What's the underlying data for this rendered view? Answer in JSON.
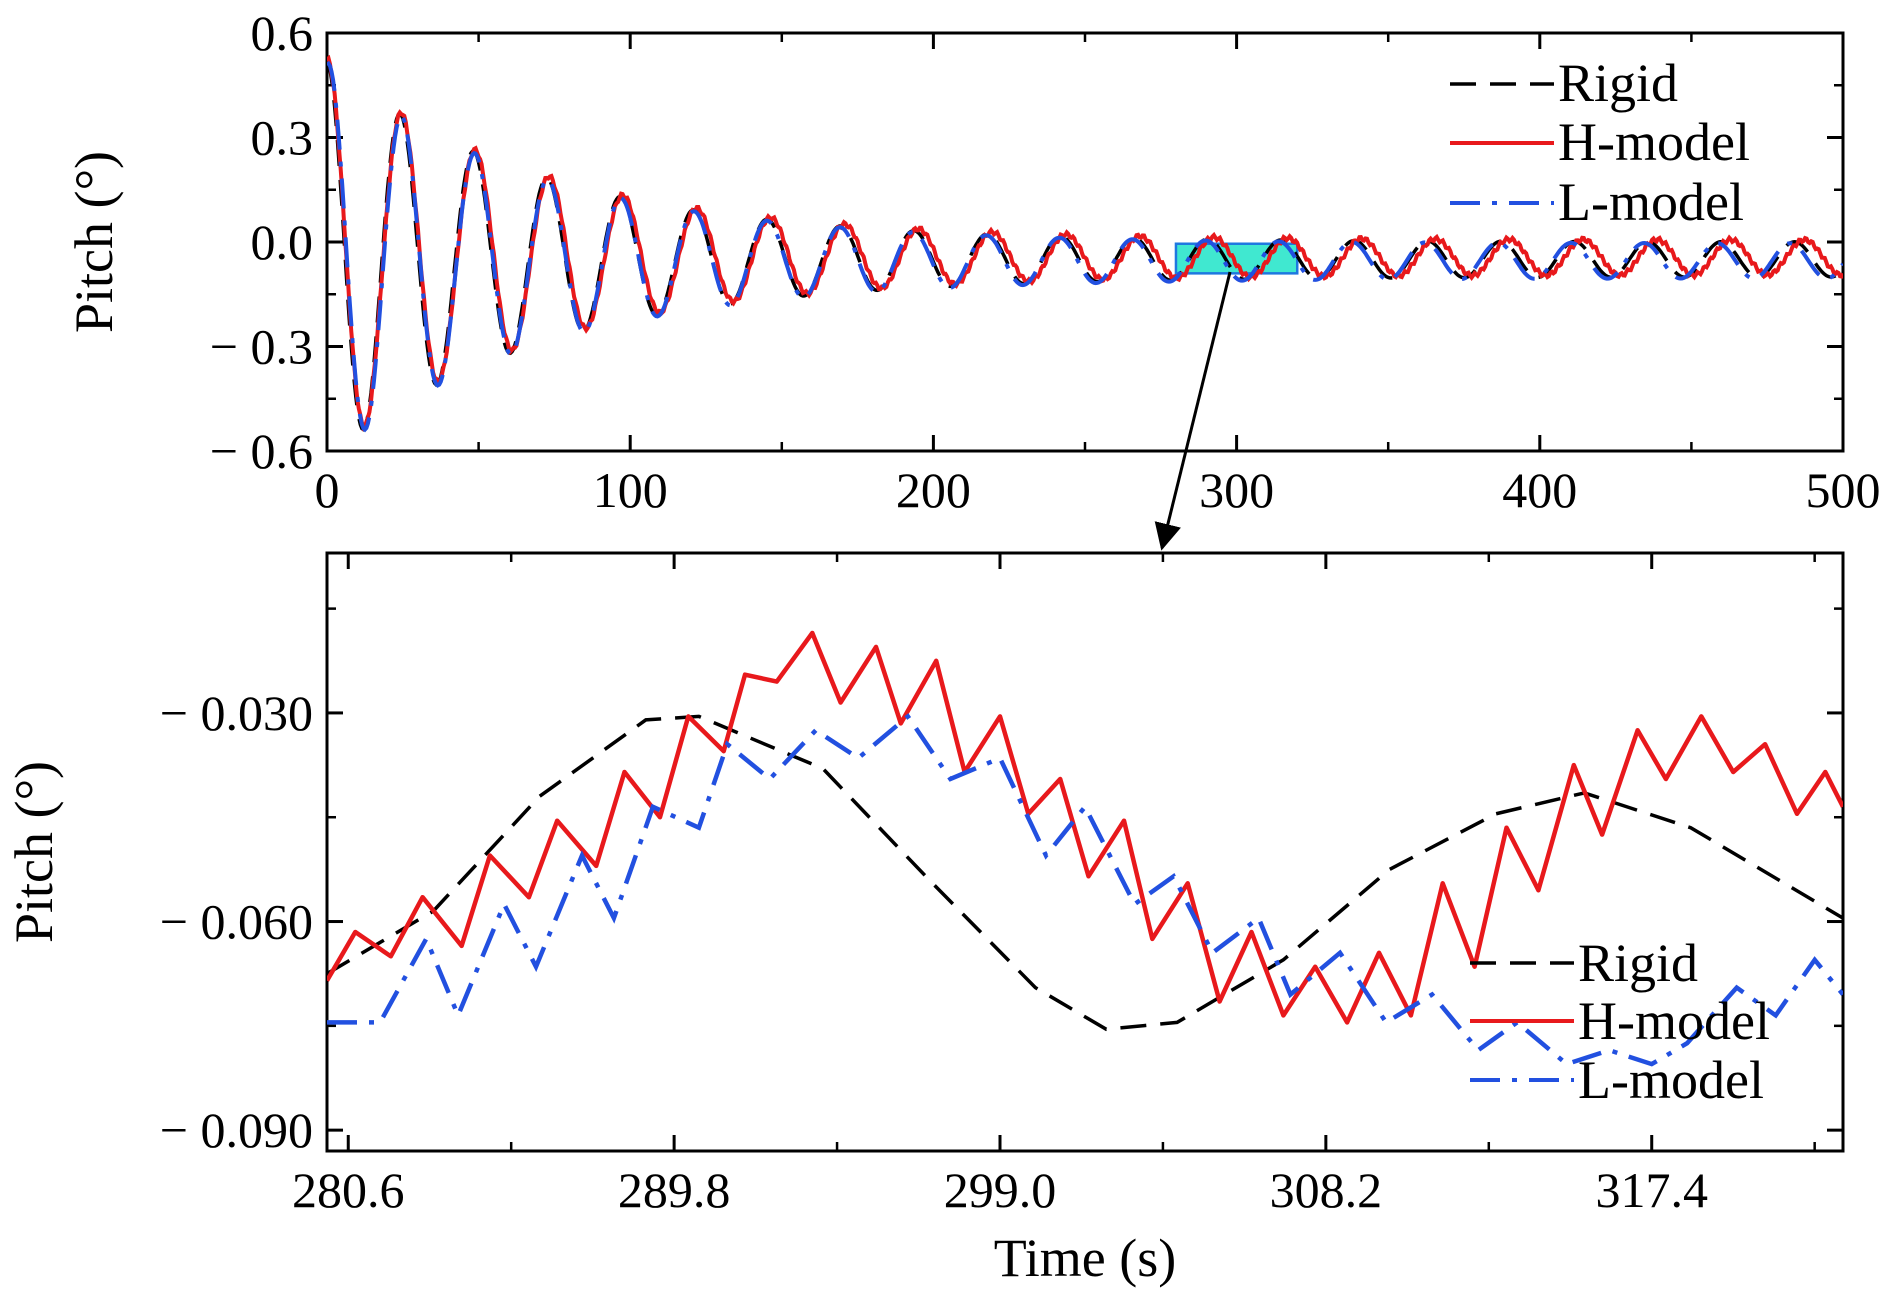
{
  "chart_data": [
    {
      "type": "line",
      "ylabel": "Pitch (°)",
      "xlabel": "",
      "xlim": [
        0,
        500
      ],
      "ylim": [
        -0.6,
        0.6
      ],
      "x_ticks": [
        0,
        100,
        200,
        300,
        400,
        500
      ],
      "x_tick_labels": [
        "0",
        "100",
        "200",
        "300",
        "400",
        "500"
      ],
      "y_ticks": [
        0.6,
        0.3,
        0.0,
        -0.3,
        -0.6
      ],
      "y_tick_labels": [
        "0.6",
        "0.3",
        "0.0",
        "− 0.3",
        "− 0.6"
      ],
      "legend_position": "top-right",
      "model": {
        "t0": 0,
        "amp0": 0.52,
        "offset": -0.05,
        "period": 24.2,
        "decay_time": 70
      },
      "series": [
        {
          "name": "Rigid",
          "color": "#000000",
          "style": "dashed"
        },
        {
          "name": "H-model",
          "color": "#e8191c",
          "style": "solid"
        },
        {
          "name": "L-model",
          "color": "#2250e0",
          "style": "dash-dot"
        }
      ],
      "zoom_box": {
        "x": [
          280,
          320
        ],
        "y": [
          -0.09,
          -0.005
        ],
        "fill": "#40e8d0",
        "stroke": "#1e78e0"
      }
    },
    {
      "type": "line",
      "xlabel": "Time (s)",
      "ylabel": "Pitch (°)",
      "xlim": [
        280.0,
        322.8
      ],
      "ylim": [
        -0.093,
        -0.007
      ],
      "x_ticks": [
        280.6,
        289.8,
        299.0,
        308.2,
        317.4
      ],
      "x_tick_labels": [
        "280.6",
        "289.8",
        "299.0",
        "308.2",
        "317.4"
      ],
      "y_ticks": [
        -0.03,
        -0.06,
        -0.09
      ],
      "y_tick_labels": [
        "− 0.030",
        "− 0.060",
        "− 0.090"
      ],
      "legend_position": "bottom-right",
      "series": [
        {
          "name": "Rigid",
          "color": "#000000",
          "style": "dashed",
          "x": [
            280.0,
            283.0,
            286.0,
            289.0,
            290.5,
            294.0,
            297.0,
            300.0,
            302.0,
            304.0,
            307.0,
            310.0,
            313.0,
            315.5,
            318.5,
            322.8
          ],
          "y": [
            -0.0675,
            -0.0585,
            -0.042,
            -0.031,
            -0.0305,
            -0.038,
            -0.054,
            -0.0695,
            -0.0755,
            -0.0745,
            -0.0655,
            -0.0525,
            -0.0445,
            -0.0415,
            -0.0465,
            -0.0595
          ]
        },
        {
          "name": "H-model",
          "color": "#e8191c",
          "style": "solid",
          "x": [
            280.0,
            280.8,
            281.8,
            282.7,
            283.8,
            284.6,
            285.7,
            286.5,
            287.6,
            288.4,
            289.4,
            290.2,
            291.2,
            291.8,
            292.7,
            293.7,
            294.5,
            295.5,
            296.2,
            297.2,
            298.0,
            299.0,
            299.8,
            300.7,
            301.5,
            302.5,
            303.3,
            304.3,
            305.2,
            306.1,
            307.0,
            307.9,
            308.8,
            309.7,
            310.6,
            311.5,
            312.4,
            313.3,
            314.2,
            315.2,
            316.0,
            317.0,
            317.8,
            318.8,
            319.7,
            320.6,
            321.5,
            322.3,
            322.8
          ],
          "y": [
            -0.0685,
            -0.0615,
            -0.065,
            -0.0565,
            -0.0635,
            -0.0505,
            -0.0565,
            -0.0455,
            -0.052,
            -0.0385,
            -0.045,
            -0.0305,
            -0.0355,
            -0.0245,
            -0.0255,
            -0.0185,
            -0.0285,
            -0.0205,
            -0.0315,
            -0.0225,
            -0.0385,
            -0.0305,
            -0.0445,
            -0.0395,
            -0.0535,
            -0.0455,
            -0.0625,
            -0.0545,
            -0.0715,
            -0.0615,
            -0.0735,
            -0.0665,
            -0.0745,
            -0.0645,
            -0.0735,
            -0.0545,
            -0.0665,
            -0.0465,
            -0.0555,
            -0.0375,
            -0.0475,
            -0.0325,
            -0.0395,
            -0.0305,
            -0.0385,
            -0.0345,
            -0.0445,
            -0.0385,
            -0.0435
          ]
        },
        {
          "name": "L-model",
          "color": "#2250e0",
          "style": "dash-dot",
          "x": [
            280.0,
            281.5,
            282.8,
            283.7,
            285.0,
            285.9,
            287.2,
            288.1,
            289.2,
            290.5,
            291.3,
            292.5,
            293.8,
            295.0,
            296.4,
            297.6,
            299.0,
            300.3,
            301.4,
            302.8,
            303.9,
            305.0,
            306.3,
            307.2,
            308.6,
            309.9,
            311.2,
            312.5,
            313.6,
            315.0,
            316.2,
            317.4,
            318.4,
            319.8,
            320.9,
            322.0,
            322.8
          ],
          "y": [
            -0.0745,
            -0.0745,
            -0.0625,
            -0.0735,
            -0.0575,
            -0.0665,
            -0.0505,
            -0.0595,
            -0.0435,
            -0.0465,
            -0.0345,
            -0.0395,
            -0.0325,
            -0.0365,
            -0.0305,
            -0.0395,
            -0.0365,
            -0.0505,
            -0.0435,
            -0.0575,
            -0.0535,
            -0.0645,
            -0.0595,
            -0.0705,
            -0.0645,
            -0.0745,
            -0.0705,
            -0.0785,
            -0.0745,
            -0.0805,
            -0.0785,
            -0.0805,
            -0.0775,
            -0.0695,
            -0.0735,
            -0.0655,
            -0.0705
          ]
        }
      ]
    }
  ]
}
